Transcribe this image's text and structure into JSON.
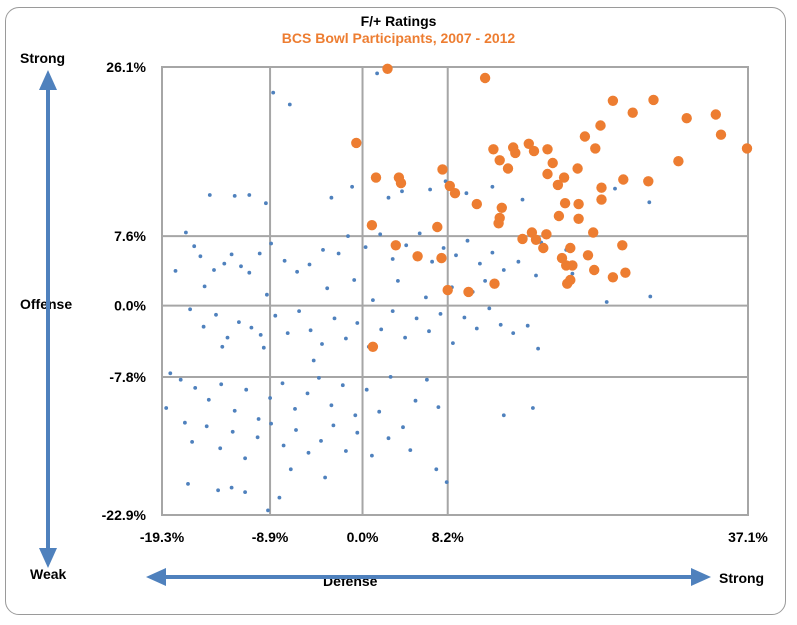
{
  "chart_data": {
    "type": "scatter",
    "title": "F/+ Ratings",
    "subtitle": "BCS Bowl Participants,  2007  - 2012",
    "xlabel": "Defense",
    "ylabel": "Offense",
    "x_arrow_end_label": "Strong",
    "y_arrow_top_label": "Strong",
    "y_arrow_bottom_label": "Weak",
    "xlim": [
      -19.3,
      37.1
    ],
    "ylim": [
      -22.9,
      26.1
    ],
    "x_ticks": [
      {
        "value": -19.3,
        "label": "-19.3%"
      },
      {
        "value": -8.9,
        "label": "-8.9%"
      },
      {
        "value": 0.0,
        "label": "0.0%"
      },
      {
        "value": 8.2,
        "label": "8.2%"
      },
      {
        "value": 37.1,
        "label": "37.1%"
      }
    ],
    "y_ticks": [
      {
        "value": 26.1,
        "label": "26.1%"
      },
      {
        "value": 7.6,
        "label": "7.6%"
      },
      {
        "value": 0.0,
        "label": "0.0%"
      },
      {
        "value": -7.8,
        "label": "-7.8%"
      },
      {
        "value": -22.9,
        "label": "-22.9%"
      }
    ],
    "grid": true,
    "series": [
      {
        "color": "#4f81bd",
        "marker_size": "small",
        "points": [
          [
            1.4,
            25.4
          ],
          [
            -8.6,
            23.3
          ],
          [
            -7.0,
            22.0
          ],
          [
            -14.7,
            12.1
          ],
          [
            -12.3,
            12.0
          ],
          [
            -10.9,
            12.1
          ],
          [
            -9.3,
            11.2
          ],
          [
            -3.0,
            11.8
          ],
          [
            -1.0,
            13.0
          ],
          [
            2.5,
            11.8
          ],
          [
            3.8,
            12.5
          ],
          [
            6.5,
            12.7
          ],
          [
            8.0,
            13.6
          ],
          [
            10.0,
            12.3
          ],
          [
            12.5,
            13.0
          ],
          [
            15.4,
            11.6
          ],
          [
            24.3,
            12.8
          ],
          [
            27.6,
            11.3
          ],
          [
            -17.0,
            8.0
          ],
          [
            -16.2,
            6.5
          ],
          [
            -15.6,
            5.4
          ],
          [
            -14.3,
            3.9
          ],
          [
            -15.2,
            2.1
          ],
          [
            -13.3,
            4.6
          ],
          [
            -12.6,
            5.6
          ],
          [
            -11.7,
            4.3
          ],
          [
            -10.9,
            3.6
          ],
          [
            -9.9,
            5.7
          ],
          [
            -8.8,
            6.8
          ],
          [
            -7.5,
            4.9
          ],
          [
            -6.3,
            3.7
          ],
          [
            -5.1,
            4.5
          ],
          [
            -3.8,
            6.1
          ],
          [
            -2.3,
            5.7
          ],
          [
            -1.4,
            7.6
          ],
          [
            0.3,
            6.4
          ],
          [
            1.7,
            7.8
          ],
          [
            2.9,
            5.1
          ],
          [
            4.2,
            6.6
          ],
          [
            5.5,
            7.9
          ],
          [
            6.7,
            4.8
          ],
          [
            7.8,
            6.3
          ],
          [
            9.0,
            5.5
          ],
          [
            10.1,
            7.1
          ],
          [
            11.3,
            4.6
          ],
          [
            12.5,
            5.8
          ],
          [
            13.6,
            3.9
          ],
          [
            15.0,
            4.8
          ],
          [
            16.7,
            3.3
          ],
          [
            17.2,
            6.9
          ],
          [
            19.6,
            6.1
          ],
          [
            20.2,
            3.5
          ],
          [
            23.5,
            0.4
          ],
          [
            27.7,
            1.0
          ],
          [
            -16.6,
            -0.4
          ],
          [
            -15.3,
            -2.3
          ],
          [
            -14.1,
            -1.0
          ],
          [
            -13.0,
            -3.5
          ],
          [
            -11.9,
            -1.8
          ],
          [
            -10.7,
            -2.4
          ],
          [
            -9.5,
            -4.6
          ],
          [
            -8.4,
            -1.1
          ],
          [
            -7.2,
            -3.0
          ],
          [
            -6.1,
            -0.6
          ],
          [
            -5.0,
            -2.7
          ],
          [
            -3.9,
            -4.2
          ],
          [
            -2.7,
            -1.4
          ],
          [
            -1.6,
            -3.6
          ],
          [
            -0.5,
            -1.9
          ],
          [
            0.6,
            -4.5
          ],
          [
            1.8,
            -2.6
          ],
          [
            2.9,
            -0.6
          ],
          [
            4.1,
            -3.5
          ],
          [
            5.2,
            -1.4
          ],
          [
            6.4,
            -2.8
          ],
          [
            7.5,
            -0.9
          ],
          [
            8.7,
            -4.1
          ],
          [
            9.8,
            -1.3
          ],
          [
            11.0,
            -2.5
          ],
          [
            12.2,
            -0.3
          ],
          [
            13.3,
            -2.1
          ],
          [
            14.5,
            -3.0
          ],
          [
            15.9,
            -2.2
          ],
          [
            16.9,
            -4.7
          ],
          [
            -17.5,
            -8.1
          ],
          [
            -16.1,
            -9.0
          ],
          [
            -14.8,
            -10.3
          ],
          [
            -13.6,
            -8.6
          ],
          [
            -12.3,
            -11.5
          ],
          [
            -11.2,
            -9.2
          ],
          [
            -10.0,
            -12.4
          ],
          [
            -8.9,
            -10.1
          ],
          [
            -7.7,
            -8.5
          ],
          [
            -6.5,
            -11.3
          ],
          [
            -5.3,
            -9.6
          ],
          [
            -4.2,
            -7.9
          ],
          [
            -3.0,
            -10.9
          ],
          [
            -1.9,
            -8.7
          ],
          [
            -0.7,
            -12.0
          ],
          [
            0.4,
            -9.2
          ],
          [
            1.6,
            -11.6
          ],
          [
            2.7,
            -7.8
          ],
          [
            3.9,
            -13.3
          ],
          [
            5.1,
            -10.4
          ],
          [
            6.2,
            -8.1
          ],
          [
            7.3,
            -11.1
          ],
          [
            13.6,
            -12.0
          ],
          [
            16.4,
            -11.2
          ],
          [
            -16.4,
            -14.9
          ],
          [
            -15.0,
            -13.2
          ],
          [
            -13.7,
            -15.6
          ],
          [
            -12.5,
            -13.8
          ],
          [
            -11.3,
            -16.7
          ],
          [
            -10.1,
            -14.4
          ],
          [
            -8.8,
            -12.9
          ],
          [
            -7.6,
            -15.3
          ],
          [
            -6.4,
            -13.6
          ],
          [
            -5.2,
            -16.1
          ],
          [
            -4.0,
            -14.8
          ],
          [
            -2.8,
            -13.1
          ],
          [
            -1.6,
            -15.9
          ],
          [
            -0.5,
            -13.9
          ],
          [
            0.9,
            -16.4
          ],
          [
            2.5,
            -14.5
          ],
          [
            4.6,
            -15.8
          ],
          [
            7.1,
            -17.9
          ],
          [
            8.1,
            -19.3
          ],
          [
            -16.8,
            -19.5
          ],
          [
            -13.9,
            -20.2
          ],
          [
            -12.6,
            -19.9
          ],
          [
            -11.3,
            -20.4
          ],
          [
            -9.1,
            -22.4
          ],
          [
            -8.0,
            -21.0
          ],
          [
            -18.5,
            -7.4
          ],
          [
            -18.0,
            3.8
          ],
          [
            -13.5,
            -4.5
          ],
          [
            -9.8,
            -3.2
          ],
          [
            -9.2,
            1.2
          ],
          [
            -4.7,
            -6.0
          ],
          [
            -3.4,
            1.9
          ],
          [
            -0.8,
            2.8
          ],
          [
            1.0,
            0.6
          ],
          [
            3.4,
            2.7
          ],
          [
            6.1,
            0.9
          ],
          [
            8.6,
            2.0
          ],
          [
            10.6,
            1.5
          ],
          [
            11.8,
            2.7
          ],
          [
            -18.9,
            -11.2
          ],
          [
            -17.1,
            -12.8
          ],
          [
            -6.9,
            -17.9
          ],
          [
            -3.6,
            -18.8
          ]
        ]
      },
      {
        "color": "#ed7d31",
        "marker_size": "large",
        "points": [
          [
            2.4,
            25.9
          ],
          [
            11.8,
            24.9
          ],
          [
            -0.6,
            17.8
          ],
          [
            1.3,
            14.0
          ],
          [
            3.5,
            14.0
          ],
          [
            3.7,
            13.4
          ],
          [
            7.7,
            14.9
          ],
          [
            8.4,
            13.1
          ],
          [
            12.6,
            17.1
          ],
          [
            13.2,
            15.9
          ],
          [
            14.5,
            17.3
          ],
          [
            14.0,
            15.0
          ],
          [
            16.0,
            17.7
          ],
          [
            16.5,
            16.9
          ],
          [
            17.8,
            17.1
          ],
          [
            18.3,
            15.6
          ],
          [
            18.8,
            13.2
          ],
          [
            17.8,
            14.4
          ],
          [
            19.4,
            14.0
          ],
          [
            20.7,
            15.0
          ],
          [
            21.4,
            18.5
          ],
          [
            22.4,
            17.2
          ],
          [
            23.0,
            12.9
          ],
          [
            25.1,
            13.8
          ],
          [
            27.5,
            13.6
          ],
          [
            30.4,
            15.8
          ],
          [
            34.5,
            18.7
          ],
          [
            37.0,
            17.2
          ],
          [
            31.2,
            20.5
          ],
          [
            34.0,
            20.9
          ],
          [
            28.0,
            22.5
          ],
          [
            22.9,
            19.7
          ],
          [
            24.1,
            22.4
          ],
          [
            26.0,
            21.1
          ],
          [
            14.7,
            16.7
          ],
          [
            8.9,
            12.3
          ],
          [
            0.9,
            8.8
          ],
          [
            3.2,
            6.6
          ],
          [
            7.2,
            8.6
          ],
          [
            7.6,
            5.2
          ],
          [
            5.3,
            5.4
          ],
          [
            11.0,
            11.1
          ],
          [
            13.4,
            10.7
          ],
          [
            13.2,
            9.6
          ],
          [
            13.1,
            9.0
          ],
          [
            15.4,
            7.3
          ],
          [
            16.3,
            8.0
          ],
          [
            16.7,
            7.2
          ],
          [
            17.4,
            6.3
          ],
          [
            17.7,
            7.8
          ],
          [
            18.9,
            9.8
          ],
          [
            19.5,
            11.2
          ],
          [
            20.8,
            11.1
          ],
          [
            20.8,
            9.5
          ],
          [
            22.2,
            8.0
          ],
          [
            23.0,
            11.6
          ],
          [
            25.0,
            6.6
          ],
          [
            19.6,
            4.4
          ],
          [
            20.2,
            4.4
          ],
          [
            21.7,
            5.5
          ],
          [
            19.2,
            5.2
          ],
          [
            20.0,
            6.3
          ],
          [
            22.3,
            3.9
          ],
          [
            24.1,
            3.1
          ],
          [
            25.3,
            3.6
          ],
          [
            20.0,
            2.8
          ],
          [
            19.7,
            2.4
          ],
          [
            12.7,
            2.4
          ],
          [
            8.2,
            1.7
          ],
          [
            10.2,
            1.5
          ],
          [
            1.0,
            -4.5
          ]
        ]
      }
    ]
  },
  "plot_area_color": "#ffffff",
  "grid_color": "#a6a6a6",
  "arrow_color": "#4f81bd"
}
